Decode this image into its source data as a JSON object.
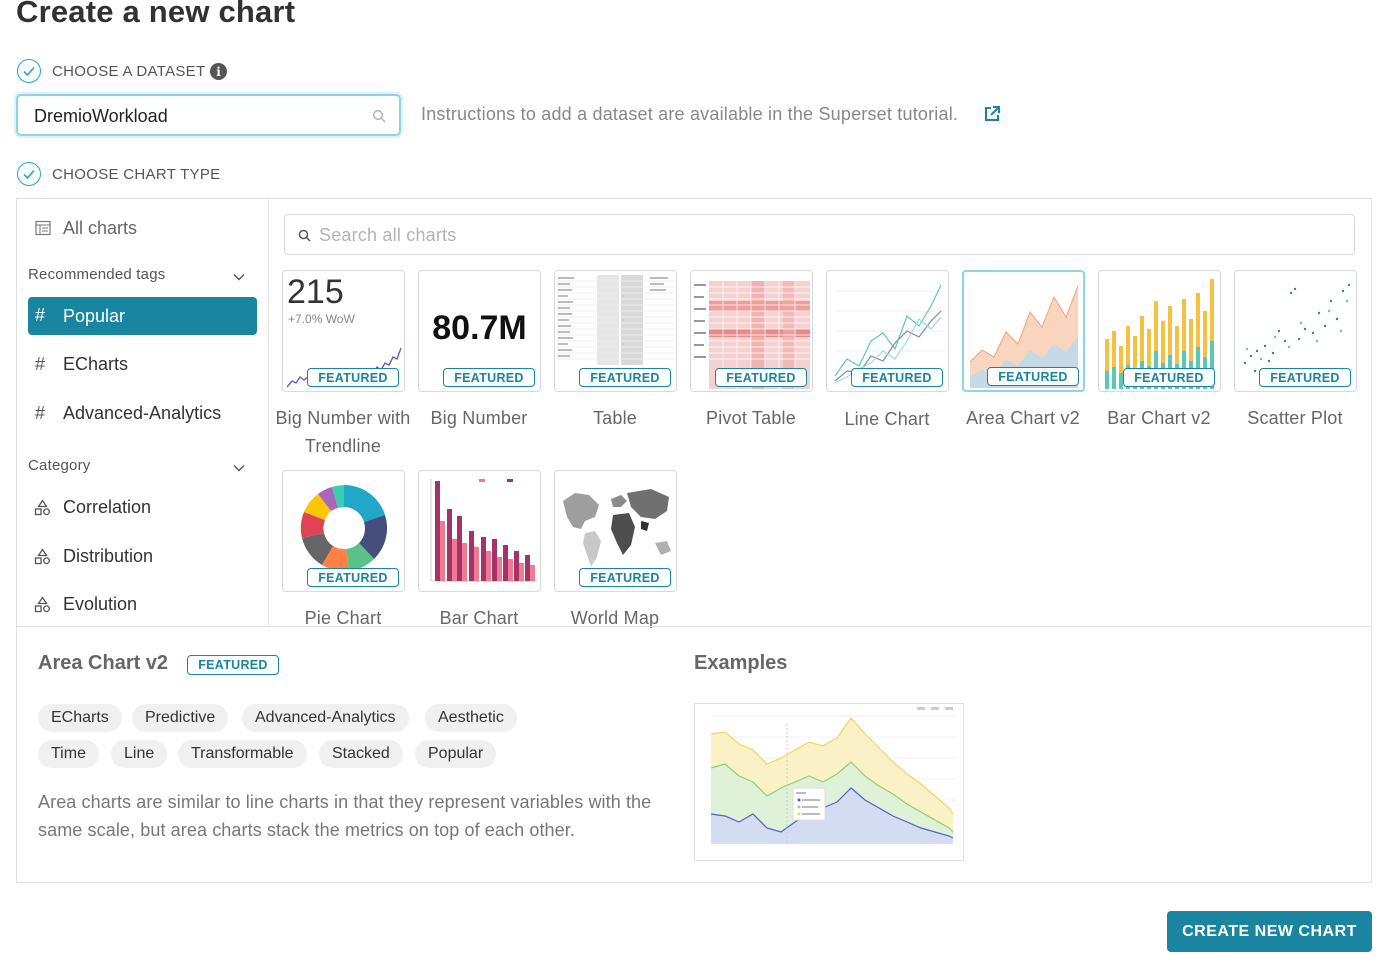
{
  "page": {
    "title": "Create a new chart"
  },
  "dataset_step": {
    "label": "CHOOSE A DATASET",
    "value": "DremioWorkload",
    "instructions": "Instructions to add a dataset are available in the Superset tutorial."
  },
  "chart_type_step": {
    "label": "CHOOSE CHART TYPE"
  },
  "sidebar": {
    "all_charts": "All charts",
    "recommended_header": "Recommended tags",
    "tags": [
      {
        "label": "Popular"
      },
      {
        "label": "ECharts"
      },
      {
        "label": "Advanced-Analytics"
      }
    ],
    "category_header": "Category",
    "categories": [
      {
        "label": "Correlation"
      },
      {
        "label": "Distribution"
      },
      {
        "label": "Evolution"
      }
    ]
  },
  "search": {
    "placeholder": "Search all charts"
  },
  "tiles": {
    "featured_label": "FEATURED",
    "big_number_trend": {
      "name": "Big Number with Trendline",
      "value": "215",
      "sub": "+7.0% WoW"
    },
    "big_number": {
      "name": "Big Number",
      "value": "80.7M"
    },
    "table": {
      "name": "Table"
    },
    "pivot_table": {
      "name": "Pivot Table"
    },
    "line_chart": {
      "name": "Line Chart"
    },
    "area_chart_v2": {
      "name": "Area Chart v2"
    },
    "bar_chart_v2": {
      "name": "Bar Chart v2"
    },
    "scatter_plot": {
      "name": "Scatter Plot"
    },
    "pie_chart": {
      "name": "Pie Chart"
    },
    "bar_chart": {
      "name": "Bar Chart"
    },
    "world_map": {
      "name": "World Map"
    }
  },
  "detail": {
    "title": "Area Chart v2",
    "badge": "FEATURED",
    "tags": [
      "ECharts",
      "Predictive",
      "Advanced-Analytics",
      "Aesthetic",
      "Time",
      "Line",
      "Transformable",
      "Stacked",
      "Popular"
    ],
    "description": "Area charts are similar to line charts in that they represent variables with the same scale, but area charts stack the metrics on top of each other.",
    "examples_title": "Examples"
  },
  "actions": {
    "create_label": "CREATE NEW CHART"
  },
  "colors": {
    "accent": "#20a7c9",
    "primary": "#1a85a0"
  }
}
